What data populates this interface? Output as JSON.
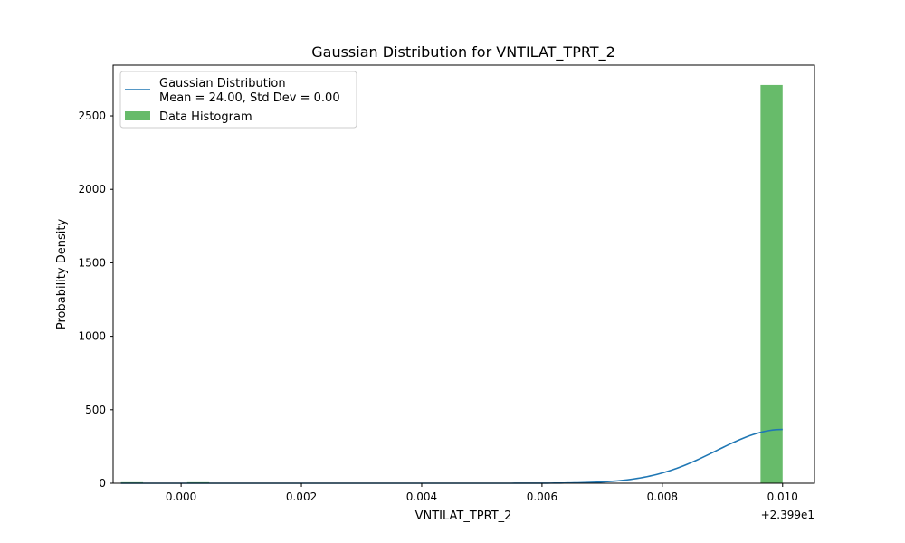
{
  "chart_data": {
    "type": "histogram",
    "title": "Gaussian Distribution for VNTILAT_TPRT_2",
    "xlabel": "VNTILAT_TPRT_2",
    "ylabel": "Probability Density",
    "x_offset_label": "+2.399e1",
    "xlim": [
      -0.00113,
      0.01053
    ],
    "ylim": [
      0,
      2845
    ],
    "x_ticks": [
      0.0,
      0.002,
      0.004,
      0.006,
      0.008,
      0.01
    ],
    "x_tick_labels": [
      "0.000",
      "0.002",
      "0.004",
      "0.006",
      "0.008",
      "0.010"
    ],
    "y_ticks": [
      0,
      500,
      1000,
      1500,
      2000,
      2500
    ],
    "y_tick_labels": [
      "0",
      "500",
      "1000",
      "1500",
      "2000",
      "2500"
    ],
    "histogram": {
      "name": "Data Histogram",
      "color": "#4caf50",
      "opacity": 0.85,
      "bins": [
        {
          "x0": -0.001,
          "x1": -0.000633,
          "value": 7
        },
        {
          "x0": 0.0001,
          "x1": 0.000467,
          "value": 7
        },
        {
          "x0": 0.009633,
          "x1": 0.01,
          "value": 2710
        }
      ]
    },
    "gaussian": {
      "name_line1": "Gaussian Distribution",
      "name_line2": "Mean = 24.00, Std Dev = 0.00",
      "color": "#1f77b4",
      "mean_offset": 0.01,
      "sigma": 0.0011,
      "peak": 366,
      "x_start": -0.001,
      "x_end": 0.01
    },
    "legend_position": "upper-left",
    "grid": false
  }
}
